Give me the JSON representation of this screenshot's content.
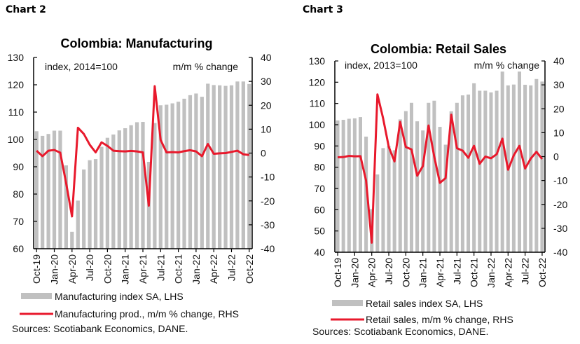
{
  "charts_header": [
    {
      "label": "Chart 2"
    },
    {
      "label": "Chart 3"
    }
  ],
  "chart_data": [
    {
      "type": "bar",
      "combo": "bar+line (dual axis)",
      "title": "Colombia: Manufacturing",
      "left_note": "index, 2014=100",
      "right_note": "m/m % change",
      "categories": [
        "Oct-19",
        "Nov-19",
        "Dec-19",
        "Jan-20",
        "Feb-20",
        "Mar-20",
        "Apr-20",
        "May-20",
        "Jun-20",
        "Jul-20",
        "Aug-20",
        "Sep-20",
        "Oct-20",
        "Nov-20",
        "Dec-20",
        "Jan-21",
        "Feb-21",
        "Mar-21",
        "Apr-21",
        "May-21",
        "Jun-21",
        "Jul-21",
        "Aug-21",
        "Sep-21",
        "Oct-21",
        "Nov-21",
        "Dec-21",
        "Jan-22",
        "Feb-22",
        "Mar-22",
        "Apr-22",
        "May-22",
        "Jun-22",
        "Jul-22",
        "Aug-22",
        "Sep-22",
        "Oct-22"
      ],
      "x_tick_labels": [
        "Oct-19",
        "Jan-20",
        "Apr-20",
        "Jul-20",
        "Oct-20",
        "Jan-21",
        "Apr-21",
        "Jul-21",
        "Oct-21",
        "Jan-22",
        "Apr-22",
        "Jul-22",
        "Oct-22"
      ],
      "y_left": {
        "min": 60,
        "max": 130,
        "step": 10,
        "ticks": [
          "60",
          "70",
          "80",
          "90",
          "100",
          "110",
          "120",
          "130"
        ]
      },
      "y_right": {
        "min": -40,
        "max": 40,
        "step": 10,
        "ticks": [
          "-40",
          "-30",
          "-20",
          "-10",
          "0",
          "10",
          "20",
          "30",
          "40"
        ]
      },
      "series": [
        {
          "name": "Manufacturing index SA, LHS",
          "axis": "left",
          "kind": "bar",
          "color": "#c0c0c0",
          "values": [
            103.0,
            101.3,
            102.0,
            103.2,
            103.2,
            90.5,
            66.2,
            77.6,
            89.0,
            92.4,
            92.8,
            97.3,
            100.6,
            101.8,
            103.3,
            104.1,
            105.2,
            106.3,
            106.4,
            91.8,
            106.0,
            112.5,
            112.7,
            113.2,
            113.8,
            114.9,
            116.2,
            116.8,
            115.6,
            120.4,
            119.9,
            119.8,
            119.6,
            119.8,
            121.2,
            121.2,
            120.3
          ]
        },
        {
          "name": "Manufacturing prod., m/m % change, RHS",
          "axis": "right",
          "kind": "line",
          "color": "#e8192c",
          "values": [
            1.0,
            -1.3,
            1.0,
            1.3,
            0.2,
            -12.5,
            -26.5,
            10.6,
            8.0,
            3.5,
            0.3,
            4.5,
            3.0,
            1.0,
            0.8,
            0.7,
            0.9,
            0.7,
            0.3,
            -22.0,
            28.0,
            5.5,
            0.3,
            0.4,
            0.3,
            0.8,
            1.2,
            0.7,
            -1.3,
            3.8,
            -0.3,
            -0.1,
            0.0,
            0.5,
            1.0,
            -0.5,
            -0.8
          ]
        }
      ],
      "legend": [
        "Manufacturing index SA, LHS",
        "Manufacturing prod., m/m % change, RHS"
      ],
      "legend_position": "bottom",
      "source": "Sources: Scotiabank Economics, DANE.",
      "grid": false
    },
    {
      "type": "bar",
      "combo": "bar+line (dual axis)",
      "title": "Colombia: Retail Sales",
      "left_note": "index, 2013=100",
      "right_note": "m/m % change",
      "categories": [
        "Oct-19",
        "Nov-19",
        "Dec-19",
        "Jan-20",
        "Feb-20",
        "Mar-20",
        "Apr-20",
        "May-20",
        "Jun-20",
        "Jul-20",
        "Aug-20",
        "Sep-20",
        "Oct-20",
        "Nov-20",
        "Dec-20",
        "Jan-21",
        "Feb-21",
        "Mar-21",
        "Apr-21",
        "May-21",
        "Jun-21",
        "Jul-21",
        "Aug-21",
        "Sep-21",
        "Oct-21",
        "Nov-21",
        "Dec-21",
        "Jan-22",
        "Feb-22",
        "Mar-22",
        "Apr-22",
        "May-22",
        "Jun-22",
        "Jul-22",
        "Aug-22",
        "Sep-22",
        "Oct-22"
      ],
      "x_tick_labels": [
        "Oct-19",
        "Jan-20",
        "Apr-20",
        "Jul-20",
        "Oct-20",
        "Jan-21",
        "Apr-21",
        "Jul-21",
        "Oct-21",
        "Jan-22",
        "Apr-22",
        "Jul-22",
        "Oct-22"
      ],
      "y_left": {
        "min": 40,
        "max": 130,
        "step": 10,
        "ticks": [
          "40",
          "50",
          "60",
          "70",
          "80",
          "90",
          "100",
          "110",
          "120",
          "130"
        ]
      },
      "y_right": {
        "min": -40,
        "max": 40,
        "step": 10,
        "ticks": [
          "-40",
          "-30",
          "-20",
          "-10",
          "0",
          "10",
          "20",
          "30",
          "40"
        ]
      },
      "series": [
        {
          "name": "Retail sales index SA, LHS",
          "axis": "left",
          "kind": "bar",
          "color": "#c0c0c0",
          "values": [
            102.0,
            102.3,
            102.8,
            103.0,
            103.6,
            94.4,
            60.3,
            76.6,
            89.0,
            90.0,
            88.0,
            102.5,
            106.4,
            110.3,
            101.6,
            97.3,
            110.3,
            111.3,
            99.0,
            90.6,
            106.3,
            110.3,
            113.8,
            114.2,
            119.5,
            116.0,
            116.0,
            115.2,
            116.0,
            125.0,
            118.5,
            118.9,
            125.0,
            118.8,
            118.5,
            121.5,
            120.3
          ]
        },
        {
          "name": "Retail sales, m/m % change, RHS",
          "axis": "right",
          "kind": "line",
          "color": "#e8192c",
          "values": [
            -0.3,
            -0.2,
            0.3,
            0.1,
            0.2,
            -10.0,
            -36.0,
            26.0,
            16.0,
            4.0,
            -2.0,
            14.5,
            4.0,
            3.0,
            -8.0,
            -4.0,
            13.0,
            0.0,
            -11.0,
            -9.0,
            17.5,
            3.5,
            2.5,
            -0.5,
            4.5,
            -3.0,
            0.0,
            -0.7,
            1.0,
            7.5,
            -5.5,
            0.5,
            4.5,
            -5.0,
            -0.8,
            2.0,
            -1.0
          ]
        }
      ],
      "legend": [
        "Retail sales index SA, LHS",
        "Retail sales, m/m % change, RHS"
      ],
      "legend_position": "bottom",
      "source": "Sources: Scotiabank Economics, DANE.",
      "grid": false
    }
  ]
}
